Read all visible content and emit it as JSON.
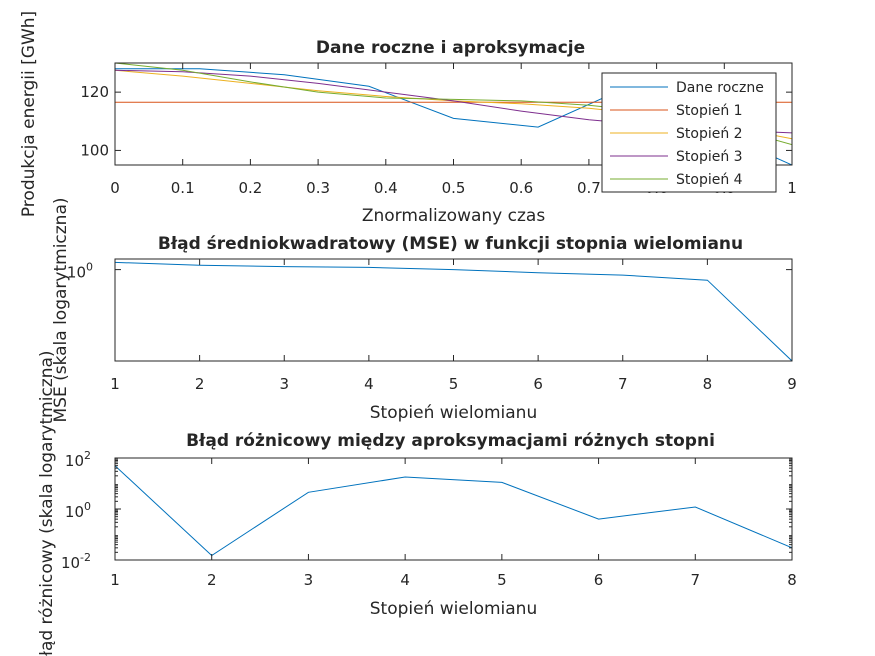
{
  "chart_data": [
    {
      "type": "line",
      "title": "Dane roczne i aproksymacje",
      "xlabel": "Znormalizowany czas",
      "ylabel": "Produkcja energii [GWh]",
      "xlim": [
        0,
        1
      ],
      "ylim": [
        95,
        130
      ],
      "xticks": [
        0,
        0.1,
        0.2,
        0.3,
        0.4,
        0.5,
        0.6,
        0.7,
        0.8,
        0.9,
        1
      ],
      "xtick_labels": [
        "0",
        "0.1",
        "0.2",
        "0.3",
        "0.4",
        "0.5",
        "0.6",
        "0.7",
        "0.8",
        "0.9",
        "1"
      ],
      "yticks": [
        100,
        120
      ],
      "ytick_labels": [
        "100",
        "120"
      ],
      "grid": false,
      "legend_position": "top-right",
      "series": [
        {
          "name": "Dane roczne",
          "color": "#0072BD",
          "x": [
            0,
            0.125,
            0.25,
            0.375,
            0.5,
            0.625,
            0.75,
            0.875,
            1
          ],
          "y": [
            128,
            128,
            126,
            122,
            111,
            108,
            121,
            108,
            95
          ]
        },
        {
          "name": "Stopień 1",
          "color": "#D95319",
          "x": [
            0,
            1
          ],
          "y": [
            116.5,
            116.5
          ]
        },
        {
          "name": "Stopień 2",
          "color": "#EDB120",
          "x": [
            0,
            0.1,
            0.2,
            0.3,
            0.4,
            0.5,
            0.6,
            0.7,
            0.8,
            0.9,
            1
          ],
          "y": [
            127.5,
            125.5,
            123,
            120.5,
            118.5,
            117,
            116,
            114.5,
            112,
            108.5,
            104
          ]
        },
        {
          "name": "Stopień 3",
          "color": "#7E2F8E",
          "x": [
            0,
            0.1,
            0.2,
            0.3,
            0.4,
            0.5,
            0.6,
            0.7,
            0.8,
            0.9,
            1
          ],
          "y": [
            127.5,
            127,
            125.5,
            123,
            120,
            117,
            113.5,
            110.5,
            108.5,
            107,
            106
          ]
        },
        {
          "name": "Stopień 4",
          "color": "#77AC30",
          "x": [
            0,
            0.1,
            0.2,
            0.3,
            0.4,
            0.5,
            0.6,
            0.7,
            0.8,
            0.9,
            1
          ],
          "y": [
            130,
            127.5,
            123.5,
            120,
            118,
            117.5,
            117,
            115.5,
            113,
            108.5,
            102
          ]
        }
      ]
    },
    {
      "type": "line",
      "title": "Błąd średniokwadratowy (MSE) w funkcji stopnia wielomianu",
      "xlabel": "Stopień wielomianu",
      "ylabel": "MSE (skala logarytmiczna)",
      "yscale": "log",
      "xlim": [
        1,
        9
      ],
      "ylim": [
        0.3,
        1.15
      ],
      "xticks": [
        1,
        2,
        3,
        4,
        5,
        6,
        7,
        8,
        9
      ],
      "xtick_labels": [
        "1",
        "2",
        "3",
        "4",
        "5",
        "6",
        "7",
        "8",
        "9"
      ],
      "yticks": [
        1
      ],
      "ytick_labels": [
        "10",
        "0"
      ],
      "grid": false,
      "series": [
        {
          "color": "#0072BD",
          "x": [
            1,
            2,
            3,
            4,
            5,
            6,
            7,
            8,
            9
          ],
          "y": [
            1.1,
            1.06,
            1.04,
            1.03,
            1.0,
            0.96,
            0.93,
            0.87,
            0.3
          ]
        }
      ]
    },
    {
      "type": "line",
      "title": "Błąd różnicowy między aproksymacjami różnych stopni",
      "xlabel": "Stopień wielomianu",
      "ylabel": "Błąd różnicowy (skala logarytmiczna)",
      "yscale": "log",
      "xlim": [
        1,
        8
      ],
      "ylim": [
        0.01,
        100
      ],
      "xticks": [
        1,
        2,
        3,
        4,
        5,
        6,
        7,
        8
      ],
      "xtick_labels": [
        "1",
        "2",
        "3",
        "4",
        "5",
        "6",
        "7",
        "8"
      ],
      "yticks": [
        0.01,
        1,
        100
      ],
      "ytick_labels": [
        [
          "10",
          "-2"
        ],
        [
          "10",
          "0"
        ],
        [
          "10",
          "2"
        ]
      ],
      "grid": false,
      "series": [
        {
          "color": "#0072BD",
          "x": [
            1,
            2,
            3,
            4,
            5,
            6,
            7,
            8
          ],
          "y": [
            50,
            0.015,
            4.5,
            18,
            11,
            0.4,
            1.2,
            0.03
          ]
        }
      ]
    }
  ]
}
